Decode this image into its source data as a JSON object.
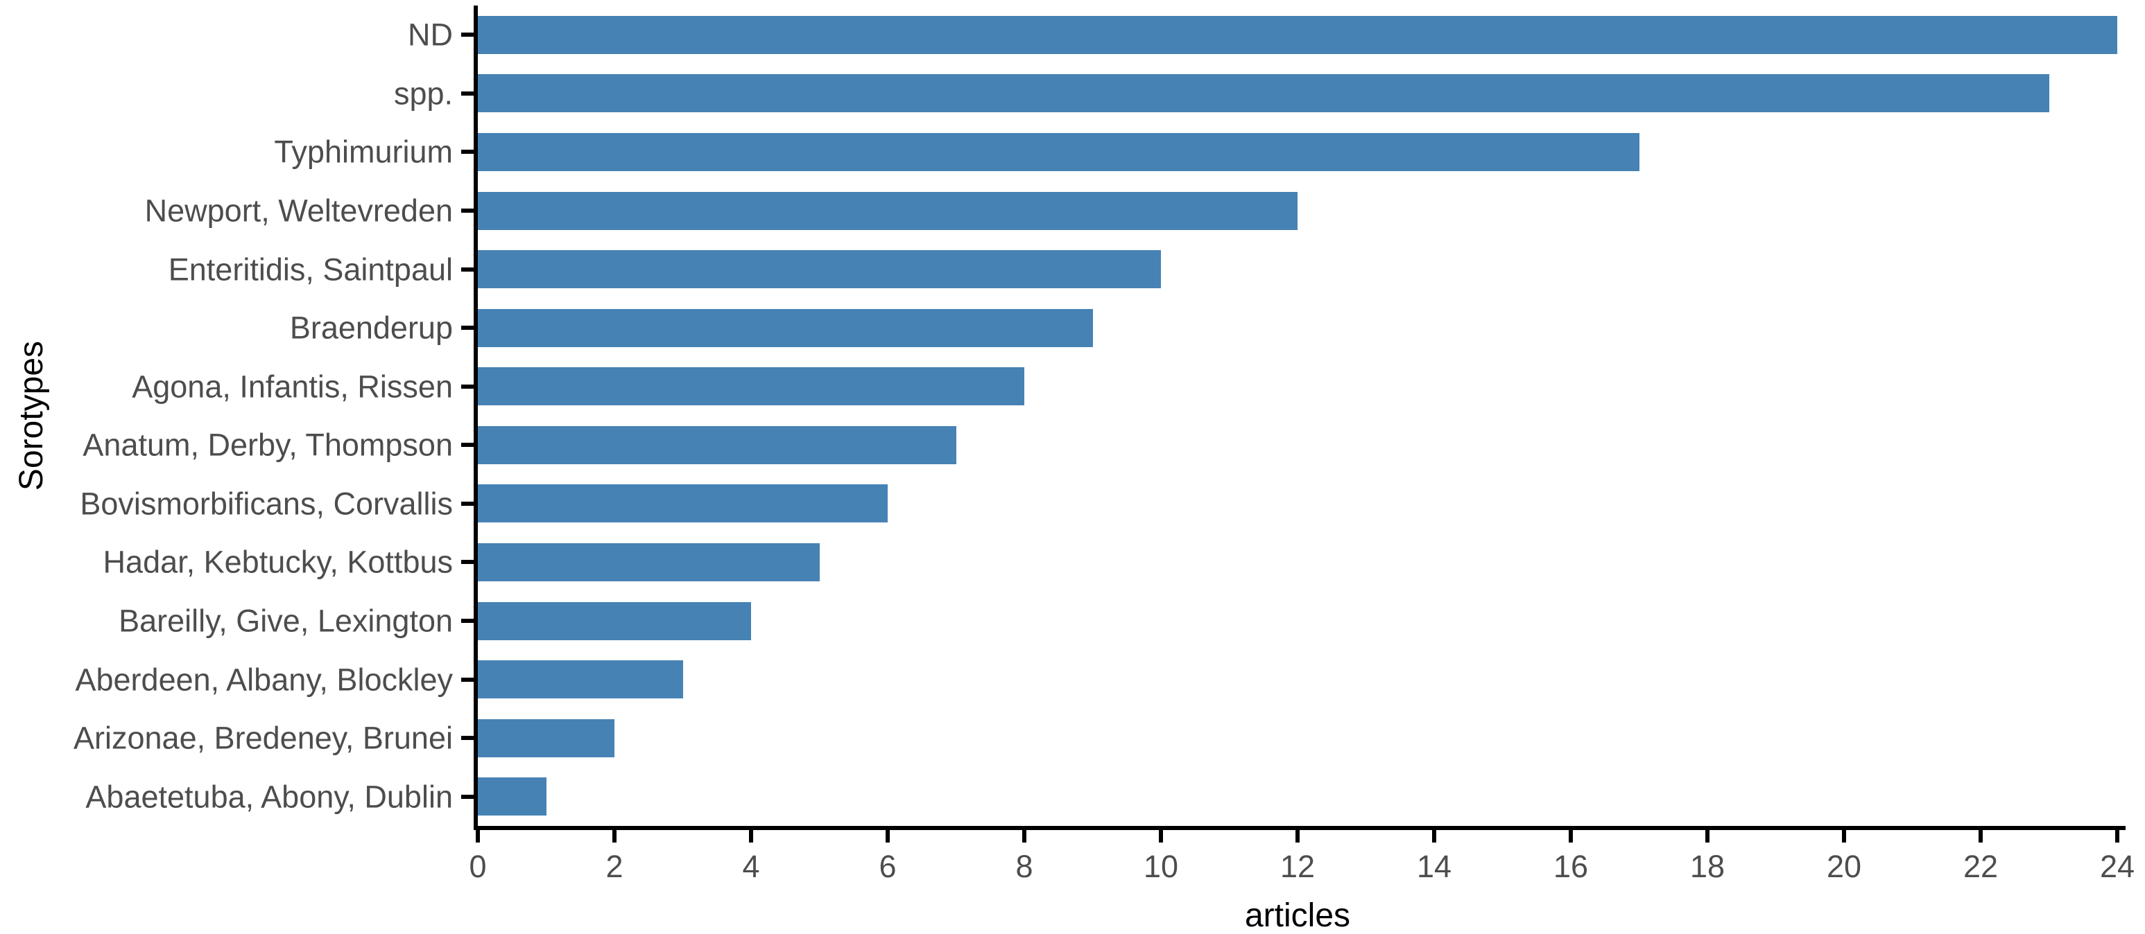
{
  "chart_data": {
    "type": "bar",
    "orientation": "horizontal",
    "title": "",
    "xlabel": "articles",
    "ylabel": "Sorotypes",
    "xlim": [
      0,
      24
    ],
    "xticks": [
      0,
      2,
      4,
      6,
      8,
      10,
      12,
      14,
      16,
      18,
      20,
      22,
      24
    ],
    "grid": false,
    "legend": null,
    "bar_color": "#4682B4",
    "axis_color": "#000000",
    "tick_label_color": "#4d4d4d",
    "axis_title_color": "#000000",
    "categories": [
      "ND",
      "spp.",
      "Typhimurium",
      "Newport, Weltevreden",
      "Enteritidis, Saintpaul",
      "Braenderup",
      "Agona, Infantis, Rissen",
      "Anatum, Derby, Thompson",
      "Bovismorbificans, Corvallis",
      "Hadar, Kebtucky, Kottbus",
      "Bareilly, Give, Lexington",
      "Aberdeen, Albany, Blockley",
      "Arizonae, Bredeney, Brunei",
      "Abaetetuba, Abony, Dublin"
    ],
    "values": [
      24,
      23,
      17,
      12,
      10,
      9,
      8,
      7,
      6,
      5,
      4,
      3,
      2,
      1
    ]
  }
}
